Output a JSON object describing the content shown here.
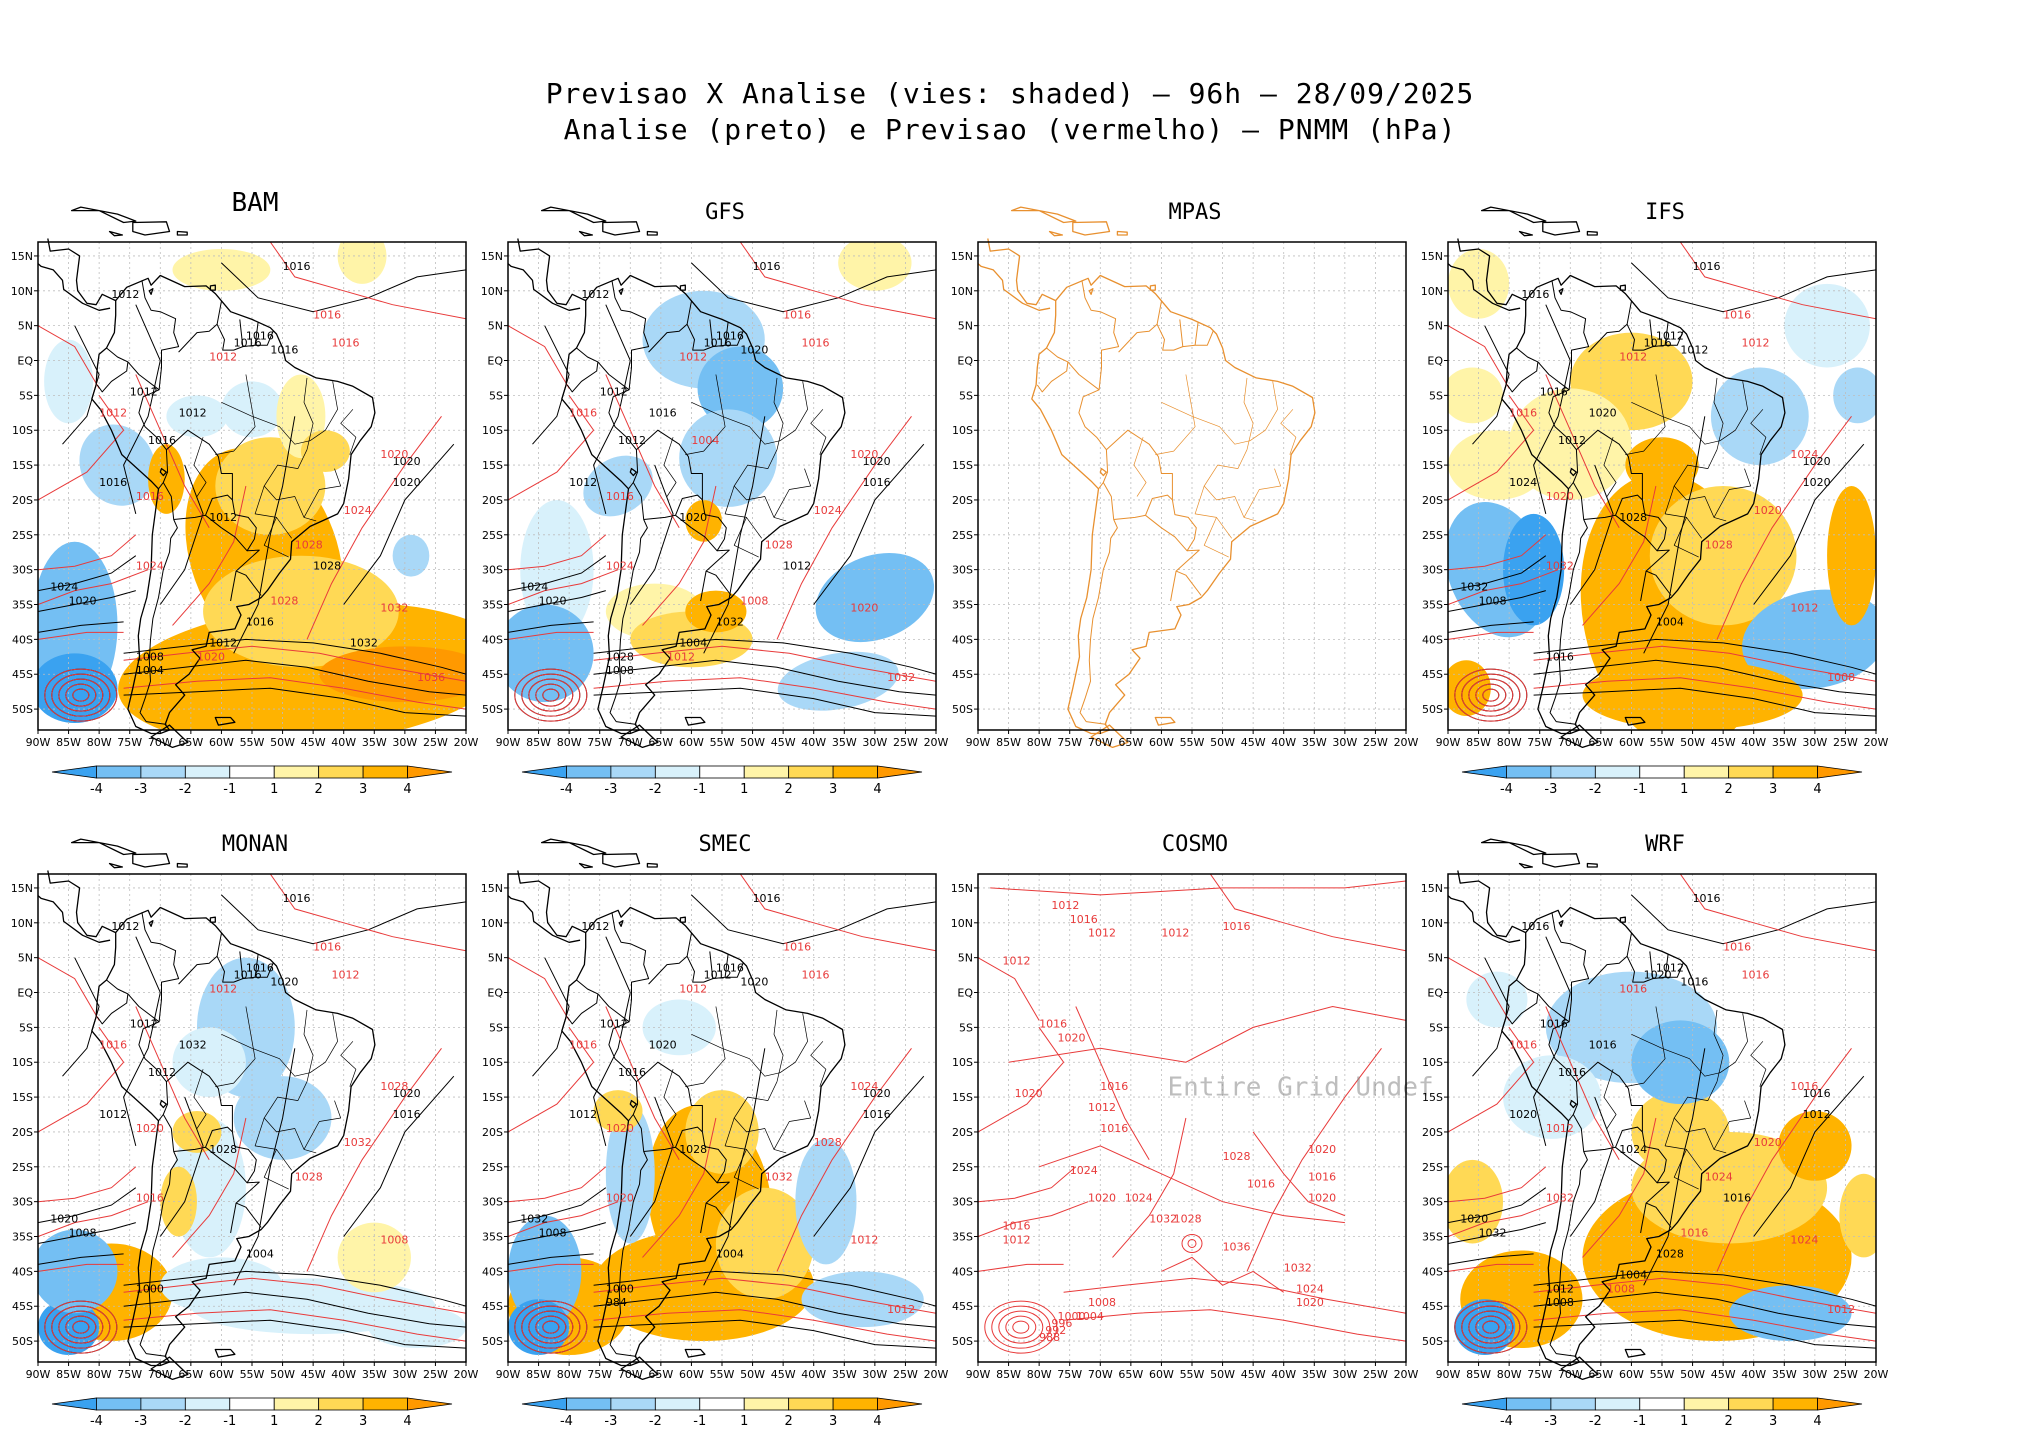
{
  "title": {
    "line1": "Previsao X Analise (vies: shaded) — 96h — 28/09/2025",
    "line2": "Analise (preto) e Previsao (vermelho) — PNMM (hPa)"
  },
  "lat_labels": [
    "15N",
    "10N",
    "5N",
    "EQ",
    "5S",
    "10S",
    "15S",
    "20S",
    "25S",
    "30S",
    "35S",
    "40S",
    "45S",
    "50S"
  ],
  "lon_labels": [
    "90W",
    "85W",
    "80W",
    "75W",
    "70W",
    "65W",
    "60W",
    "55W",
    "50W",
    "45W",
    "40W",
    "35W",
    "30W",
    "25W",
    "20W"
  ],
  "colorbar": {
    "labels": [
      "-4",
      "-3",
      "-2",
      "-1",
      "1",
      "2",
      "3",
      "4"
    ],
    "colors": [
      "#3aa2f0",
      "#74bff3",
      "#a9d8f7",
      "#d8f1fb",
      "#ffffff",
      "#fff4a8",
      "#ffd955",
      "#ffb300",
      "#ff9900"
    ]
  },
  "colors": {
    "analysis": "#000000",
    "forecast": "#e83a3a",
    "coast_only": "#e8902f"
  },
  "panels": [
    {
      "name": "BAM",
      "mode": "full",
      "bias": "bam",
      "labels_black": [
        "1016",
        "1012",
        "1016",
        "1012",
        "1016",
        "1016",
        "1016",
        "1020",
        "1020",
        "1016",
        "1012",
        "1012",
        "1024",
        "1020",
        "1016",
        "1008",
        "1004",
        "1012",
        "1028",
        "1032"
      ],
      "labels_red": [
        "1016",
        "1016",
        "1012",
        "1012",
        "1016",
        "1020",
        "1024",
        "1028",
        "1024",
        "1032",
        "1036",
        "1020",
        "1028"
      ]
    },
    {
      "name": "GFS",
      "mode": "full",
      "bias": "gfs",
      "labels_black": [
        "1016",
        "1012",
        "1016",
        "1012",
        "1012",
        "1016",
        "1020",
        "1020",
        "1016",
        "1012",
        "1016",
        "1020",
        "1024",
        "1020",
        "1032",
        "1028",
        "1008",
        "1004",
        "1012"
      ],
      "labels_red": [
        "1016",
        "1016",
        "1012",
        "1016",
        "1016",
        "1020",
        "1024",
        "1028",
        "1024",
        "1020",
        "1032",
        "1012",
        "1008",
        "1004"
      ]
    },
    {
      "name": "MPAS",
      "mode": "coast",
      "bias": "none",
      "labels_black": [],
      "labels_red": []
    },
    {
      "name": "IFS",
      "mode": "full",
      "bias": "ifs",
      "labels_black": [
        "1016",
        "1016",
        "1012",
        "1016",
        "1012",
        "1016",
        "1012",
        "1020",
        "1020",
        "1024",
        "1020",
        "1028",
        "1032",
        "1008",
        "1004",
        "1016"
      ],
      "labels_red": [
        "1016",
        "1012",
        "1012",
        "1016",
        "1020",
        "1024",
        "1020",
        "1028",
        "1032",
        "1012",
        "1008"
      ]
    },
    {
      "name": "MONAN",
      "mode": "full",
      "bias": "monan",
      "labels_black": [
        "1016",
        "1012",
        "1016",
        "1012",
        "1012",
        "1016",
        "1020",
        "1020",
        "1016",
        "1012",
        "1032",
        "1028",
        "1020",
        "1008",
        "1004",
        "1000"
      ],
      "labels_red": [
        "1016",
        "1012",
        "1012",
        "1016",
        "1020",
        "1028",
        "1032",
        "1028",
        "1016",
        "1008"
      ]
    },
    {
      "name": "SMEC",
      "mode": "full",
      "bias": "smec",
      "labels_black": [
        "1016",
        "1012",
        "1016",
        "1012",
        "1016",
        "1012",
        "1020",
        "1020",
        "1016",
        "1012",
        "1020",
        "1028",
        "1032",
        "1008",
        "1004",
        "1000",
        "984"
      ],
      "labels_red": [
        "1016",
        "1016",
        "1012",
        "1016",
        "1020",
        "1024",
        "1028",
        "1032",
        "1020",
        "1012",
        "1012"
      ]
    },
    {
      "name": "COSMO",
      "mode": "red",
      "bias": "none",
      "watermark": "Entire Grid Undef",
      "labels_black": [],
      "labels_red": [
        "1012",
        "1016",
        "1012",
        "1012",
        "1016",
        "1012",
        "1016",
        "1020",
        "1016",
        "1012",
        "1020",
        "1016",
        "1024",
        "1020",
        "1024",
        "1028",
        "1020",
        "1016",
        "1028",
        "1032",
        "1036",
        "1032",
        "1024",
        "1020",
        "1016",
        "1012",
        "1008",
        "1004",
        "1000",
        "996",
        "992",
        "988",
        "1016",
        "1020"
      ]
    },
    {
      "name": "WRF",
      "mode": "full",
      "bias": "wrf",
      "labels_black": [
        "1016",
        "1016",
        "1012",
        "1016",
        "1016",
        "1020",
        "1016",
        "1016",
        "1012",
        "1020",
        "1016",
        "1024",
        "1020",
        "1032",
        "1028",
        "1012",
        "1008",
        "1004",
        "1016"
      ],
      "labels_red": [
        "1016",
        "1016",
        "1016",
        "1016",
        "1012",
        "1016",
        "1020",
        "1024",
        "1032",
        "1024",
        "1012",
        "1008",
        "1016"
      ]
    }
  ]
}
